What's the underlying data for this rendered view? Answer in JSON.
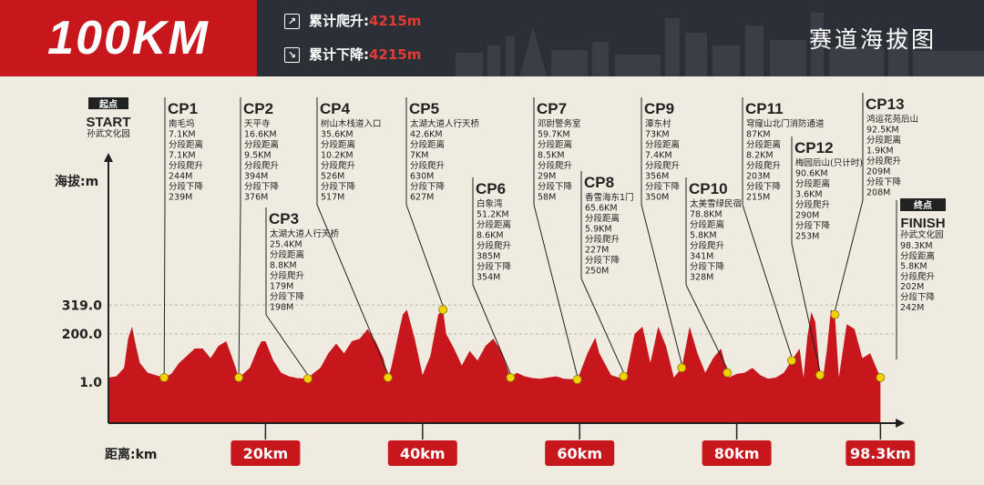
{
  "header": {
    "brand": "100KM",
    "ascent_label": "累计爬升:",
    "ascent_value": "4215m",
    "descent_label": "累计下降:",
    "descent_value": "4215m",
    "title": "赛道海拔图"
  },
  "colors": {
    "brand_red": "#c8161d",
    "dark": "#2b2f36",
    "background": "#f0ebe1",
    "profile": "#c8161d",
    "checkpoint": "#f2d200"
  },
  "icons": [
    "arrow-up-right-icon",
    "arrow-down-right-icon",
    "skyline-silhouette"
  ],
  "start": {
    "title": "起点",
    "label": "START",
    "place": "孙武文化园"
  },
  "finish": {
    "title": "终点",
    "label": "FINISH",
    "place": "孙武文化园",
    "lines": [
      "98.3KM",
      "分段距离",
      "5.8KM",
      "分段爬升",
      "202M",
      "分段下降",
      "242M"
    ]
  },
  "checkpoints": [
    {
      "name": "CP1",
      "km": 7.1,
      "lines": [
        "南毛坞",
        "7.1KM",
        "分段距离",
        "7.1KM",
        "分段爬升",
        "244M",
        "分段下降",
        "239M"
      ]
    },
    {
      "name": "CP2",
      "km": 16.6,
      "lines": [
        "天平寺",
        "16.6KM",
        "分段距离",
        "9.5KM",
        "分段爬升",
        "394M",
        "分段下降",
        "376M"
      ]
    },
    {
      "name": "CP3",
      "km": 25.4,
      "lines": [
        "太湖大道人行天桥",
        "25.4KM",
        "分段距离",
        "8.8KM",
        "分段爬升",
        "179M",
        "分段下降",
        "198M"
      ]
    },
    {
      "name": "CP4",
      "km": 35.6,
      "lines": [
        "树山木栈道入口",
        "35.6KM",
        "分段距离",
        "10.2KM",
        "分段爬升",
        "526M",
        "分段下降",
        "517M"
      ]
    },
    {
      "name": "CP5",
      "km": 42.6,
      "lines": [
        "太湖大道人行天桥",
        "42.6KM",
        "分段距离",
        "7KM",
        "分段爬升",
        "630M",
        "分段下降",
        "627M"
      ]
    },
    {
      "name": "CP6",
      "km": 51.2,
      "lines": [
        "白象湾",
        "51.2KM",
        "分段距离",
        "8.6KM",
        "分段爬升",
        "385M",
        "分段下降",
        "354M"
      ]
    },
    {
      "name": "CP7",
      "km": 59.7,
      "lines": [
        "邓尉警务室",
        "59.7KM",
        "分段距离",
        "8.5KM",
        "分段爬升",
        "29M",
        "分段下降",
        "58M"
      ]
    },
    {
      "name": "CP8",
      "km": 65.6,
      "lines": [
        "香雪海东1门",
        "65.6KM",
        "分段距离",
        "5.9KM",
        "分段爬升",
        "227M",
        "分段下降",
        "250M"
      ]
    },
    {
      "name": "CP9",
      "km": 73,
      "lines": [
        "潭东村",
        "73KM",
        "分段距离",
        "7.4KM",
        "分段爬升",
        "356M",
        "分段下降",
        "350M"
      ]
    },
    {
      "name": "CP10",
      "km": 78.8,
      "lines": [
        "太美雪绿民宿",
        "78.8KM",
        "分段距离",
        "5.8KM",
        "分段爬升",
        "341M",
        "分段下降",
        "328M"
      ]
    },
    {
      "name": "CP11",
      "km": 87,
      "lines": [
        "穹窿山北门消防通道",
        "87KM",
        "分段距离",
        "8.2KM",
        "分段爬升",
        "203M",
        "分段下降",
        "215M"
      ]
    },
    {
      "name": "CP12",
      "km": 90.6,
      "lines": [
        "梅园后山(只计时)",
        "90.6KM",
        "分段距离",
        "3.6KM",
        "分段爬升",
        "290M",
        "分段下降",
        "253M"
      ]
    },
    {
      "name": "CP13",
      "km": 92.5,
      "lines": [
        "鸿运花苑后山",
        "92.5KM",
        "分段距离",
        "1.9KM",
        "分段爬升",
        "209M",
        "分段下降",
        "208M"
      ]
    }
  ],
  "chart_data": {
    "type": "area",
    "xlabel": "距离:km",
    "ylabel": "海拔:m",
    "x_ticks": [
      "20km",
      "40km",
      "60km",
      "80km",
      "98.3km"
    ],
    "y_ticks": [
      "1.0",
      "200.0",
      "319.0"
    ],
    "ylim": [
      1,
      319
    ],
    "xlim": [
      0,
      98.3
    ],
    "x": [
      0,
      1,
      2,
      2.5,
      3,
      3.5,
      4,
      5,
      6,
      7.1,
      8,
      9,
      10,
      11,
      12,
      13,
      14,
      15,
      16,
      16.6,
      17,
      18,
      19,
      19.5,
      20,
      21,
      22,
      23,
      24,
      25.4,
      26,
      27,
      28,
      29,
      30,
      31,
      32,
      33,
      34,
      35,
      35.6,
      36,
      37,
      37.5,
      38,
      39,
      40,
      41,
      42,
      42.6,
      43,
      44,
      45,
      46,
      47,
      48,
      49,
      50,
      51.2,
      52,
      53,
      54,
      55,
      56,
      57,
      58,
      59.7,
      60,
      61,
      62,
      62.5,
      63,
      64,
      65,
      65.6,
      66,
      67,
      68,
      69,
      70,
      71,
      72,
      73,
      74,
      75,
      76,
      77,
      78,
      78.8,
      79,
      80,
      81,
      82,
      83,
      84,
      85,
      86,
      87,
      88,
      88.5,
      89,
      89.5,
      90,
      90.6,
      91,
      91.5,
      92,
      92.5,
      93,
      94,
      95,
      96,
      97,
      98.3
    ],
    "y": [
      20,
      25,
      60,
      180,
      230,
      150,
      80,
      40,
      30,
      20,
      35,
      80,
      110,
      140,
      140,
      100,
      150,
      170,
      80,
      20,
      30,
      60,
      140,
      170,
      170,
      90,
      40,
      25,
      18,
      15,
      35,
      60,
      120,
      160,
      120,
      170,
      180,
      220,
      170,
      100,
      20,
      60,
      210,
      280,
      300,
      180,
      30,
      110,
      280,
      300,
      200,
      140,
      70,
      130,
      90,
      150,
      180,
      130,
      20,
      40,
      25,
      18,
      15,
      20,
      25,
      15,
      12,
      35,
      120,
      185,
      120,
      90,
      30,
      20,
      25,
      40,
      200,
      230,
      80,
      230,
      150,
      20,
      60,
      230,
      120,
      40,
      100,
      140,
      40,
      20,
      35,
      40,
      60,
      30,
      15,
      20,
      40,
      90,
      140,
      20,
      190,
      290,
      250,
      30,
      20,
      140,
      300,
      280,
      20,
      240,
      220,
      100,
      120,
      20
    ],
    "checkpoint_km": [
      7.1,
      16.6,
      25.4,
      35.6,
      42.6,
      51.2,
      59.7,
      65.6,
      73,
      78.8,
      87,
      90.6,
      92.5,
      98.3
    ]
  }
}
